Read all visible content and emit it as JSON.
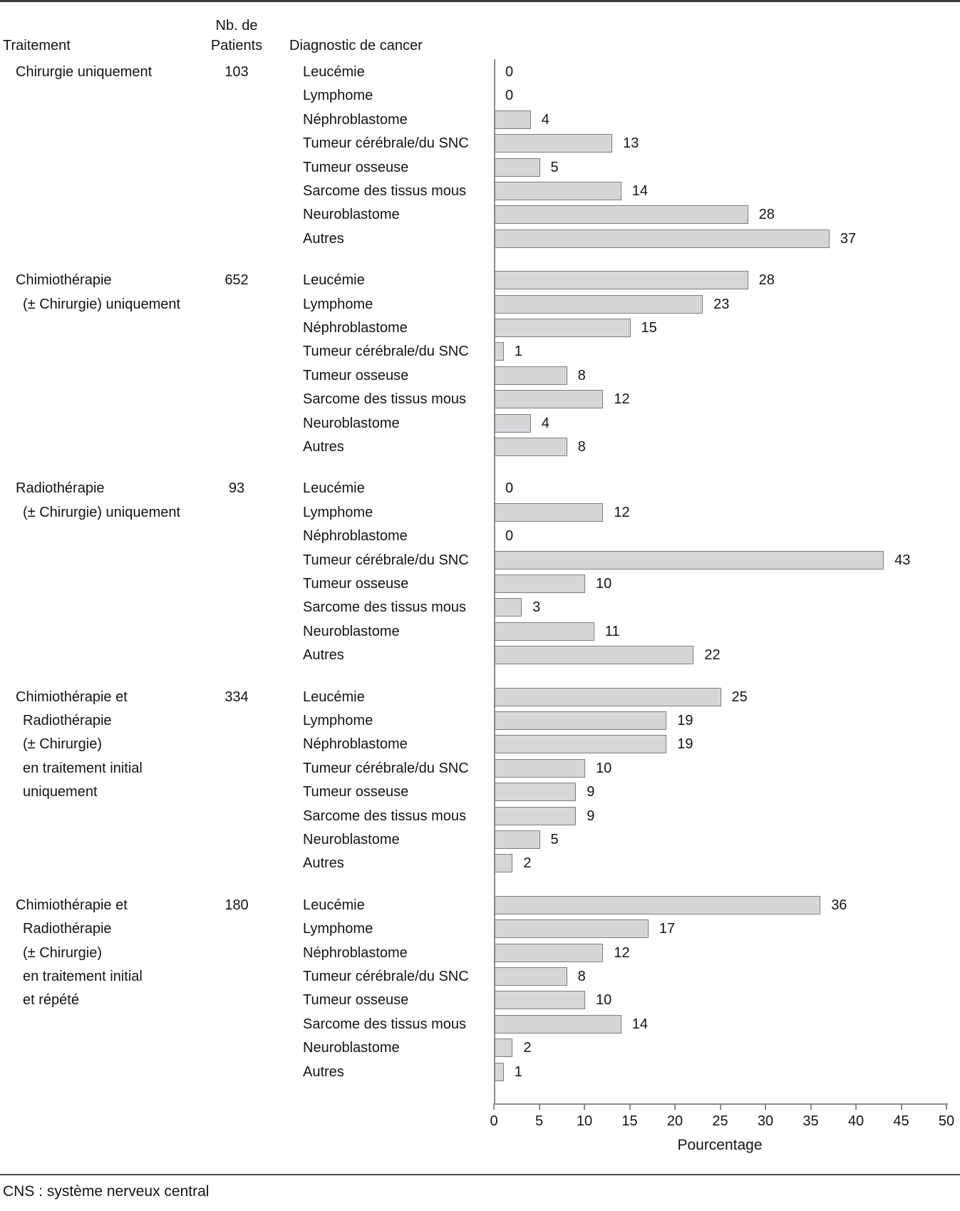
{
  "header": {
    "treatment_col": "Traitement",
    "patients_col_line1": "Nb. de",
    "patients_col_line2": "Patients",
    "diagnosis_col": "Diagnostic de cancer"
  },
  "footnote": "CNS : système nerveux central",
  "colors": {
    "bar_fill": "#d5d6d8",
    "bar_border": "#7d7e80",
    "axis_gray": "#8b8c8e",
    "text": "#141414"
  },
  "chart_data": {
    "type": "bar",
    "orientation": "horizontal",
    "xlabel": "Pourcentage",
    "xlim": [
      0,
      50
    ],
    "xticks": [
      0,
      5,
      10,
      15,
      20,
      25,
      30,
      35,
      40,
      45,
      50
    ],
    "grid": false,
    "categories": [
      "Leucémie",
      "Lymphome",
      "Néphroblastome",
      "Tumeur cérébrale/du SNC",
      "Tumeur osseuse",
      "Sarcome des tissus mous",
      "Neuroblastome",
      "Autres"
    ],
    "groups": [
      {
        "treatment_lines": [
          "Chirurgie uniquement"
        ],
        "patients": 103,
        "values": [
          0,
          0,
          4,
          13,
          5,
          14,
          28,
          37
        ]
      },
      {
        "treatment_lines": [
          "Chimiothérapie",
          "(± Chirurgie) uniquement"
        ],
        "patients": 652,
        "values": [
          28,
          23,
          15,
          1,
          8,
          12,
          4,
          8
        ]
      },
      {
        "treatment_lines": [
          "Radiothérapie",
          "(± Chirurgie) uniquement"
        ],
        "patients": 93,
        "values": [
          0,
          12,
          0,
          43,
          10,
          3,
          11,
          22
        ]
      },
      {
        "treatment_lines": [
          "Chimiothérapie et",
          "Radiothérapie",
          "(± Chirurgie)",
          "en traitement initial",
          "uniquement"
        ],
        "patients": 334,
        "values": [
          25,
          19,
          19,
          10,
          9,
          9,
          5,
          2
        ]
      },
      {
        "treatment_lines": [
          "Chimiothérapie et",
          "Radiothérapie",
          "(± Chirurgie)",
          "en traitement initial",
          "et répété"
        ],
        "patients": 180,
        "values": [
          36,
          17,
          12,
          8,
          10,
          14,
          2,
          1
        ]
      }
    ]
  }
}
